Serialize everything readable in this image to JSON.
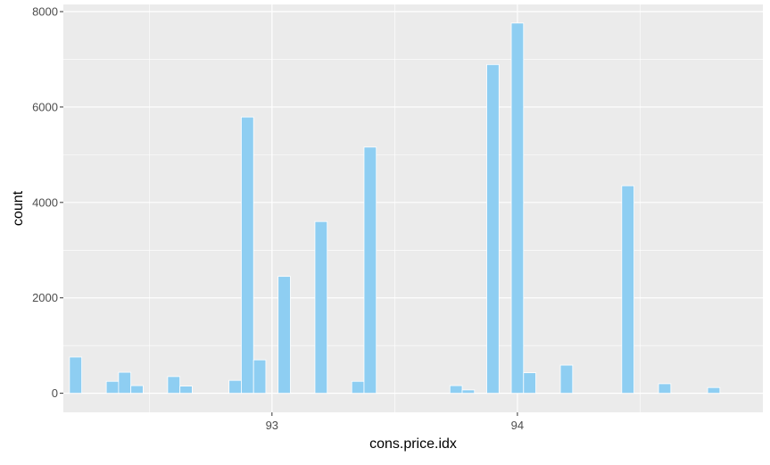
{
  "chart_data": {
    "type": "bar",
    "title": "",
    "xlabel": "cons.price.idx",
    "ylabel": "count",
    "x_ticks": [
      93,
      94
    ],
    "y_ticks": [
      0,
      2000,
      4000,
      6000,
      8000
    ],
    "xlim": [
      92.15,
      95.0
    ],
    "ylim": [
      -400,
      8150
    ],
    "grid": true,
    "colors": {
      "panel_background": "#EBEBEB",
      "grid_line": "#FFFFFF",
      "bar_fill": "#8ECEF2",
      "bar_outline": "#FFFFFF",
      "axis_text": "#4D4D4D",
      "axis_title": "#000000"
    },
    "bin_width": 0.05,
    "bins": [
      {
        "x": 92.2,
        "count": 760
      },
      {
        "x": 92.35,
        "count": 250
      },
      {
        "x": 92.4,
        "count": 440
      },
      {
        "x": 92.45,
        "count": 160
      },
      {
        "x": 92.6,
        "count": 350
      },
      {
        "x": 92.65,
        "count": 150
      },
      {
        "x": 92.85,
        "count": 270
      },
      {
        "x": 92.9,
        "count": 5790
      },
      {
        "x": 92.95,
        "count": 700
      },
      {
        "x": 93.05,
        "count": 2450
      },
      {
        "x": 93.2,
        "count": 3600
      },
      {
        "x": 93.35,
        "count": 250
      },
      {
        "x": 93.4,
        "count": 5160
      },
      {
        "x": 93.75,
        "count": 160
      },
      {
        "x": 93.8,
        "count": 70
      },
      {
        "x": 93.9,
        "count": 6890
      },
      {
        "x": 94.0,
        "count": 7760
      },
      {
        "x": 94.05,
        "count": 430
      },
      {
        "x": 94.2,
        "count": 590
      },
      {
        "x": 94.45,
        "count": 4350
      },
      {
        "x": 94.6,
        "count": 200
      },
      {
        "x": 94.8,
        "count": 120
      }
    ]
  }
}
